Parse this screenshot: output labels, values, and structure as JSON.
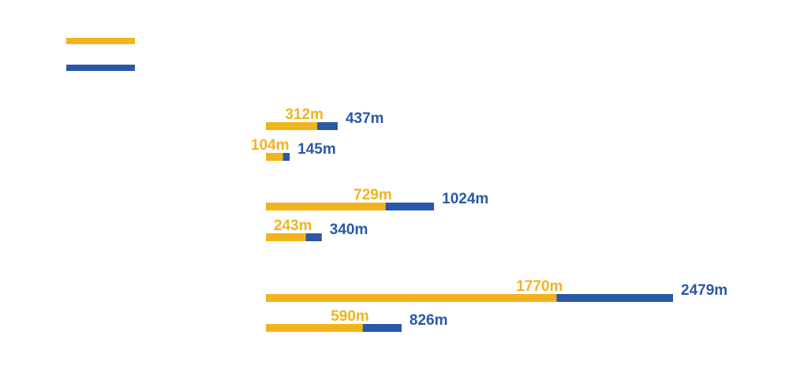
{
  "chart_data": {
    "type": "bar",
    "orientation": "horizontal",
    "stacked": false,
    "overlapping": true,
    "colors": {
      "series_a": "#F2B41D",
      "series_b": "#2A58A8"
    },
    "legend": {
      "placement": "top-left",
      "entries": [
        {
          "name": "",
          "color": "#F2B41D"
        },
        {
          "name": "",
          "color": "#2A58A8"
        }
      ]
    },
    "groups": [
      {
        "bars": [
          {
            "a": 312,
            "b": 437,
            "a_label": "312m",
            "b_label": "437m"
          },
          {
            "a": 104,
            "b": 145,
            "a_label": "104m",
            "b_label": "145m"
          }
        ]
      },
      {
        "bars": [
          {
            "a": 729,
            "b": 1024,
            "a_label": "729m",
            "b_label": "1024m"
          },
          {
            "a": 243,
            "b": 340,
            "a_label": "243m",
            "b_label": "340m"
          }
        ]
      },
      {
        "bars": [
          {
            "a": 1770,
            "b": 2479,
            "a_label": "1770m",
            "b_label": "2479m"
          },
          {
            "a": 590,
            "b": 826,
            "a_label": "590m",
            "b_label": "826m"
          }
        ]
      }
    ]
  }
}
